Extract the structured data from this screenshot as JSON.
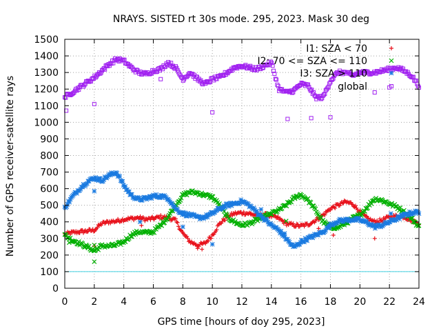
{
  "chart_data": {
    "type": "scatter",
    "title": "NRAYS. SISTED rt 30s mode. 295, 2023. Mask 30 deg",
    "xlabel": "GPS time [hours of doy 295, 2023]",
    "ylabel": "Number of GPS receiver-satellite rays",
    "xlim": [
      0,
      24
    ],
    "ylim": [
      0,
      1500
    ],
    "xticks": [
      0,
      2,
      4,
      6,
      8,
      10,
      12,
      14,
      16,
      18,
      20,
      22,
      24
    ],
    "yticks": [
      0,
      100,
      200,
      300,
      400,
      500,
      600,
      700,
      800,
      900,
      1000,
      1100,
      1200,
      1300,
      1400,
      1500
    ],
    "grid": true,
    "legend_position": "top-right",
    "colors": {
      "I1": "#e8101a",
      "I2": "#00b000",
      "I3": "#1a7ae0",
      "global": "#a020f0",
      "threshold": "#40d0e0"
    },
    "threshold_line": {
      "y": 100
    },
    "series": [
      {
        "key": "I1",
        "name": "I1: SZA < 70",
        "marker": "+",
        "x": [
          0,
          0.5,
          1,
          1.5,
          2,
          2.5,
          3,
          3.5,
          4,
          4.5,
          5,
          5.5,
          6,
          6.5,
          7,
          7.5,
          8,
          8.5,
          9,
          9.5,
          10,
          10.5,
          11,
          11.5,
          12,
          12.5,
          13,
          13.5,
          14,
          14.5,
          15,
          15.5,
          16,
          16.5,
          17,
          17.5,
          18,
          18.5,
          19,
          19.5,
          20,
          20.5,
          21,
          21.5,
          22,
          22.5,
          23,
          23.5,
          24
        ],
        "values": [
          325,
          335,
          340,
          345,
          350,
          390,
          400,
          405,
          415,
          420,
          425,
          415,
          420,
          430,
          425,
          410,
          330,
          280,
          260,
          270,
          320,
          390,
          430,
          450,
          455,
          450,
          440,
          445,
          435,
          420,
          390,
          380,
          375,
          385,
          410,
          440,
          480,
          500,
          520,
          510,
          460,
          420,
          400,
          410,
          430,
          435,
          430,
          410,
          390
        ],
        "outliers": [
          [
            2.0,
            255
          ],
          [
            5.2,
            378
          ],
          [
            9.0,
            240
          ],
          [
            9.3,
            235
          ],
          [
            12.6,
            445
          ],
          [
            17.2,
            360
          ],
          [
            18.2,
            320
          ],
          [
            20.0,
            445
          ],
          [
            21.0,
            300
          ]
        ]
      },
      {
        "key": "I2",
        "name": "I2: 70 <= SZA <= 110",
        "marker": "x",
        "x": [
          0,
          0.5,
          1,
          1.5,
          2,
          2.5,
          3,
          3.5,
          4,
          4.5,
          5,
          5.5,
          6,
          6.5,
          7,
          7.5,
          8,
          8.5,
          9,
          9.5,
          10,
          10.5,
          11,
          11.5,
          12,
          12.5,
          13,
          13.5,
          14,
          14.5,
          15,
          15.5,
          16,
          16.5,
          17,
          17.5,
          18,
          18.5,
          19,
          19.5,
          20,
          20.5,
          21,
          21.5,
          22,
          22.5,
          23,
          23.5,
          24
        ],
        "values": [
          320,
          290,
          270,
          250,
          225,
          255,
          255,
          260,
          280,
          320,
          340,
          335,
          340,
          380,
          430,
          500,
          560,
          580,
          575,
          560,
          550,
          500,
          430,
          400,
          380,
          390,
          410,
          430,
          450,
          470,
          500,
          540,
          565,
          530,
          470,
          400,
          370,
          365,
          390,
          420,
          440,
          490,
          540,
          530,
          510,
          490,
          460,
          420,
          370
        ],
        "outliers": [
          [
            2.0,
            160
          ],
          [
            2.0,
            260
          ],
          [
            0.3,
            275
          ],
          [
            15.0,
            405
          ]
        ]
      },
      {
        "key": "I3",
        "name": "I3: SZA > 110",
        "marker": "*",
        "x": [
          0,
          0.5,
          1,
          1.5,
          2,
          2.5,
          3,
          3.5,
          4,
          4.5,
          5,
          5.5,
          6,
          6.5,
          7,
          7.5,
          8,
          8.5,
          9,
          9.5,
          10,
          10.5,
          11,
          11.5,
          12,
          12.5,
          13,
          13.5,
          14,
          14.5,
          15,
          15.5,
          16,
          16.5,
          17,
          17.5,
          18,
          18.5,
          19,
          19.5,
          20,
          20.5,
          21,
          21.5,
          22,
          22.5,
          23,
          23.5,
          24
        ],
        "values": [
          485,
          550,
          600,
          640,
          665,
          650,
          680,
          700,
          620,
          560,
          535,
          540,
          555,
          555,
          545,
          480,
          450,
          440,
          425,
          430,
          450,
          480,
          500,
          510,
          525,
          500,
          460,
          420,
          380,
          350,
          300,
          245,
          280,
          300,
          320,
          340,
          380,
          405,
          410,
          415,
          410,
          395,
          370,
          380,
          400,
          420,
          440,
          455,
          460
        ],
        "outliers": [
          [
            2.0,
            585
          ],
          [
            5.1,
            400
          ],
          [
            8.0,
            370
          ],
          [
            10.0,
            265
          ],
          [
            13.3,
            475
          ],
          [
            14.9,
            330
          ],
          [
            22.1,
            450
          ]
        ]
      },
      {
        "key": "global",
        "name": "global",
        "marker": "square",
        "x": [
          0,
          0.5,
          1,
          1.5,
          2,
          2.5,
          3,
          3.5,
          4,
          4.5,
          5,
          5.5,
          6,
          6.5,
          7,
          7.5,
          8,
          8.5,
          9,
          9.5,
          10,
          10.5,
          11,
          11.5,
          12,
          12.5,
          13,
          13.5,
          14,
          14.5,
          15,
          15.5,
          16,
          16.5,
          17,
          17.5,
          18,
          18.5,
          19,
          19.5,
          20,
          20.5,
          21,
          21.5,
          22,
          22.5,
          23,
          23.5,
          24
        ],
        "values": [
          1150,
          1180,
          1210,
          1240,
          1270,
          1310,
          1350,
          1380,
          1370,
          1330,
          1300,
          1290,
          1310,
          1320,
          1360,
          1330,
          1260,
          1300,
          1260,
          1230,
          1260,
          1270,
          1300,
          1330,
          1340,
          1330,
          1320,
          1340,
          1360,
          1200,
          1180,
          1190,
          1230,
          1220,
          1150,
          1150,
          1250,
          1300,
          1300,
          1280,
          1300,
          1300,
          1300,
          1310,
          1320,
          1330,
          1310,
          1280,
          1220
        ],
        "outliers": [
          [
            0.1,
            1070
          ],
          [
            2.0,
            1110
          ],
          [
            6.5,
            1260
          ],
          [
            10.0,
            1060
          ],
          [
            15.1,
            1020
          ],
          [
            16.7,
            1025
          ],
          [
            18.0,
            1030
          ],
          [
            21.0,
            1180
          ],
          [
            22.0,
            1210
          ]
        ]
      }
    ]
  }
}
